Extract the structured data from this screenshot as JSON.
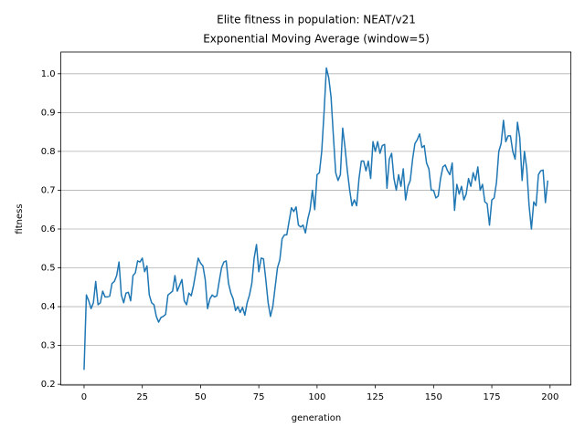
{
  "chart_data": {
    "type": "line",
    "title": "Elite fitness in population: NEAT/v21",
    "subtitle": "Exponential Moving Average (window=5)",
    "x_label": "generation",
    "y_label": "fitness",
    "color": "#1f77b4",
    "grid": true,
    "xlim": [
      -9.95,
      208.95
    ],
    "ylim": [
      0.198,
      1.056
    ],
    "xticks": [
      0,
      25,
      50,
      75,
      100,
      125,
      150,
      175,
      200
    ],
    "yticks": [
      0.2,
      0.3,
      0.4,
      0.5,
      0.6,
      0.7,
      0.8,
      0.9,
      {
        "value": 1,
        "label": "1.0"
      }
    ],
    "x": [
      0,
      1,
      2,
      3,
      4,
      5,
      6,
      7,
      8,
      9,
      10,
      11,
      12,
      13,
      14,
      15,
      16,
      17,
      18,
      19,
      20,
      21,
      22,
      23,
      24,
      25,
      26,
      27,
      28,
      29,
      30,
      31,
      32,
      33,
      34,
      35,
      36,
      37,
      38,
      39,
      40,
      41,
      42,
      43,
      44,
      45,
      46,
      47,
      48,
      49,
      50,
      51,
      52,
      53,
      54,
      55,
      56,
      57,
      58,
      59,
      60,
      61,
      62,
      63,
      64,
      65,
      66,
      67,
      68,
      69,
      70,
      71,
      72,
      73,
      74,
      75,
      76,
      77,
      78,
      79,
      80,
      81,
      82,
      83,
      84,
      85,
      86,
      87,
      88,
      89,
      90,
      91,
      92,
      93,
      94,
      95,
      96,
      97,
      98,
      99,
      100,
      101,
      102,
      103,
      104,
      105,
      106,
      107,
      108,
      109,
      110,
      111,
      112,
      113,
      114,
      115,
      116,
      117,
      118,
      119,
      120,
      121,
      122,
      123,
      124,
      125,
      126,
      127,
      128,
      129,
      130,
      131,
      132,
      133,
      134,
      135,
      136,
      137,
      138,
      139,
      140,
      141,
      142,
      143,
      144,
      145,
      146,
      147,
      148,
      149,
      150,
      151,
      152,
      153,
      154,
      155,
      156,
      157,
      158,
      159,
      160,
      161,
      162,
      163,
      164,
      165,
      166,
      167,
      168,
      169,
      170,
      171,
      172,
      173,
      174,
      175,
      176,
      177,
      178,
      179,
      180,
      181,
      182,
      183,
      184,
      185,
      186,
      187,
      188,
      189,
      190,
      191,
      192,
      193,
      194,
      195,
      196,
      197,
      198,
      199
    ],
    "values": [
      0.237,
      0.43,
      0.415,
      0.395,
      0.41,
      0.465,
      0.405,
      0.41,
      0.44,
      0.425,
      0.425,
      0.427,
      0.46,
      0.465,
      0.48,
      0.515,
      0.43,
      0.41,
      0.435,
      0.437,
      0.415,
      0.48,
      0.487,
      0.518,
      0.515,
      0.525,
      0.49,
      0.505,
      0.43,
      0.41,
      0.405,
      0.375,
      0.36,
      0.372,
      0.375,
      0.38,
      0.43,
      0.435,
      0.44,
      0.48,
      0.44,
      0.455,
      0.47,
      0.415,
      0.405,
      0.435,
      0.428,
      0.455,
      0.49,
      0.525,
      0.512,
      0.505,
      0.47,
      0.395,
      0.42,
      0.43,
      0.425,
      0.428,
      0.465,
      0.5,
      0.515,
      0.518,
      0.46,
      0.435,
      0.42,
      0.39,
      0.4,
      0.385,
      0.398,
      0.378,
      0.41,
      0.43,
      0.46,
      0.525,
      0.56,
      0.49,
      0.525,
      0.523,
      0.47,
      0.41,
      0.375,
      0.4,
      0.45,
      0.5,
      0.52,
      0.575,
      0.585,
      0.585,
      0.62,
      0.655,
      0.645,
      0.657,
      0.61,
      0.605,
      0.61,
      0.59,
      0.625,
      0.65,
      0.7,
      0.65,
      0.74,
      0.745,
      0.8,
      0.9,
      1.015,
      0.99,
      0.94,
      0.84,
      0.745,
      0.725,
      0.74,
      0.86,
      0.81,
      0.75,
      0.7,
      0.66,
      0.675,
      0.66,
      0.73,
      0.775,
      0.775,
      0.75,
      0.775,
      0.73,
      0.825,
      0.8,
      0.825,
      0.795,
      0.815,
      0.818,
      0.705,
      0.78,
      0.795,
      0.73,
      0.7,
      0.74,
      0.71,
      0.755,
      0.675,
      0.71,
      0.725,
      0.78,
      0.82,
      0.83,
      0.845,
      0.81,
      0.815,
      0.77,
      0.755,
      0.7,
      0.7,
      0.68,
      0.685,
      0.73,
      0.76,
      0.765,
      0.75,
      0.74,
      0.77,
      0.648,
      0.715,
      0.69,
      0.71,
      0.675,
      0.69,
      0.73,
      0.71,
      0.745,
      0.725,
      0.76,
      0.7,
      0.715,
      0.67,
      0.665,
      0.61,
      0.675,
      0.68,
      0.72,
      0.8,
      0.82,
      0.88,
      0.825,
      0.84,
      0.84,
      0.8,
      0.78,
      0.875,
      0.835,
      0.725,
      0.8,
      0.755,
      0.66,
      0.6,
      0.67,
      0.66,
      0.74,
      0.75,
      0.752,
      0.668,
      0.725
    ]
  }
}
